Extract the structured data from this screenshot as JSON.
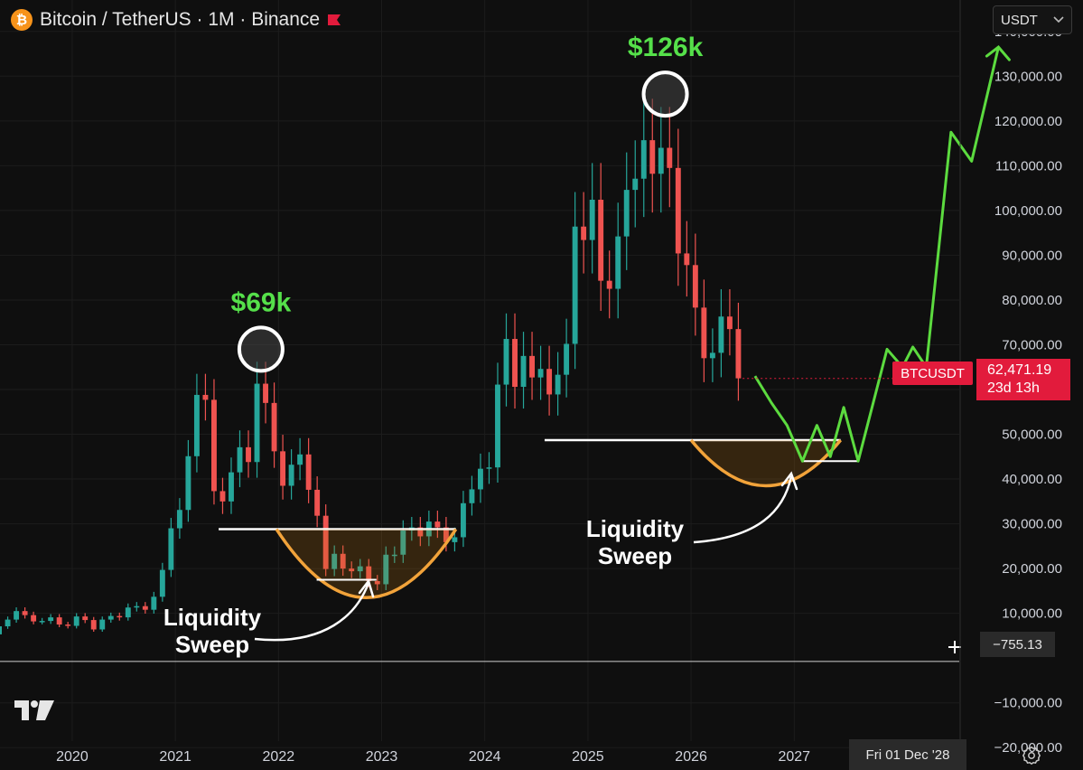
{
  "header": {
    "title": "Bitcoin / TetherUS · 1M · Binance",
    "currency": "USDT",
    "btc_icon_glyph": "₿"
  },
  "labels": {
    "peak1": "$69k",
    "peak2": "$126k",
    "sweep1_line1": "Liquidity",
    "sweep1_line2": "Sweep",
    "sweep2_line1": "Liquidity",
    "sweep2_line2": "Sweep"
  },
  "badges": {
    "symbol": "BTCUSDT",
    "last_price": "62,471.19",
    "countdown": "23d 13h",
    "crosshair_price": "−755.13",
    "crosshair_date": "Fri 01 Dec '28"
  },
  "colors": {
    "up": "#26a69a",
    "down": "#ef5350",
    "projection": "#5cdb3f",
    "bowl": "#f2a33a",
    "accent_green": "#55e04a",
    "badge_red": "#e21b3c"
  },
  "icons": [
    "bitcoin-icon",
    "flag-icon",
    "chevron-down-icon",
    "gear-icon",
    "tradingview-logo-icon"
  ],
  "chart_data": {
    "type": "candlestick",
    "symbol": "BTCUSDT",
    "timeframe": "1M",
    "ylim": [
      -25000,
      145000
    ],
    "y_ticks": [
      "140,000.00",
      "130,000.00",
      "120,000.00",
      "110,000.00",
      "100,000.00",
      "90,000.00",
      "80,000.00",
      "70,000.00",
      "60,000.00",
      "50,000.00",
      "40,000.00",
      "30,000.00",
      "20,000.00",
      "10,000.00",
      "−10,000.00",
      "−20,000.00"
    ],
    "y_tick_values": [
      140000,
      130000,
      120000,
      110000,
      100000,
      90000,
      80000,
      70000,
      60000,
      50000,
      40000,
      30000,
      20000,
      10000,
      -10000,
      -20000
    ],
    "x_ticks": [
      "2020",
      "2021",
      "2022",
      "2023",
      "2024",
      "2025",
      "2026",
      "2027"
    ],
    "x_tick_values": [
      2020,
      2021,
      2022,
      2023,
      2024,
      2025,
      2026,
      2027
    ],
    "xlim": [
      2019.3,
      2028.6
    ],
    "candles_close": [
      3800,
      4100,
      5300,
      7100,
      8600,
      10500,
      9600,
      8200,
      8300,
      9100,
      7500,
      7200,
      9300,
      8500,
      6400,
      8600,
      9400,
      9100,
      11300,
      11600,
      10800,
      13700,
      19700,
      29000,
      33100,
      45100,
      58800,
      57700,
      37300,
      35000,
      41500,
      47100,
      43800,
      61300,
      57000,
      46200,
      38500,
      43200,
      45500,
      37600,
      31800,
      19900,
      23300,
      20000,
      19400,
      20500,
      17200,
      16500,
      23100,
      23100,
      28500,
      29200,
      27200,
      30500,
      29200,
      25900,
      27000,
      34600,
      37700,
      42300,
      42600,
      61100,
      71300,
      60600,
      67500,
      62700,
      64600,
      58900,
      63300,
      70200,
      96400,
      93400,
      102400,
      84300,
      82500,
      94200,
      104600,
      107100,
      115700,
      108200,
      114000,
      109500,
      90400,
      87800,
      78300,
      67000,
      68200,
      76300,
      73500,
      62500
    ],
    "candles_open_first": 3700,
    "start": "2019-01",
    "last_price": 62471.19,
    "support_levels": [
      {
        "value": 28800,
        "from": 2021.42,
        "to": 2023.72
      },
      {
        "value": 48700,
        "from": 2024.58,
        "to": 2027.45
      }
    ],
    "bowls": [
      {
        "from": 2021.98,
        "to": 2023.72,
        "top": 28800,
        "bottom": 13500
      },
      {
        "from": 2026.0,
        "to": 2027.45,
        "top": 48700,
        "bottom": 38500
      }
    ],
    "peaks": [
      {
        "label": "$69k",
        "x": 2021.83,
        "y": 69000
      },
      {
        "label": "$126k",
        "x": 2025.75,
        "y": 126000
      }
    ],
    "projection": [
      [
        2026.62,
        63000
      ],
      [
        2026.78,
        57000
      ],
      [
        2026.93,
        52000
      ],
      [
        2027.08,
        44000
      ],
      [
        2027.22,
        52000
      ],
      [
        2027.35,
        45000
      ],
      [
        2027.48,
        56000
      ],
      [
        2027.62,
        44000
      ],
      [
        2027.9,
        69000
      ],
      [
        2028.05,
        65000
      ],
      [
        2028.15,
        69500
      ],
      [
        2028.28,
        65000
      ],
      [
        2028.52,
        117500
      ],
      [
        2028.72,
        111000
      ],
      [
        2028.98,
        136500
      ]
    ]
  }
}
